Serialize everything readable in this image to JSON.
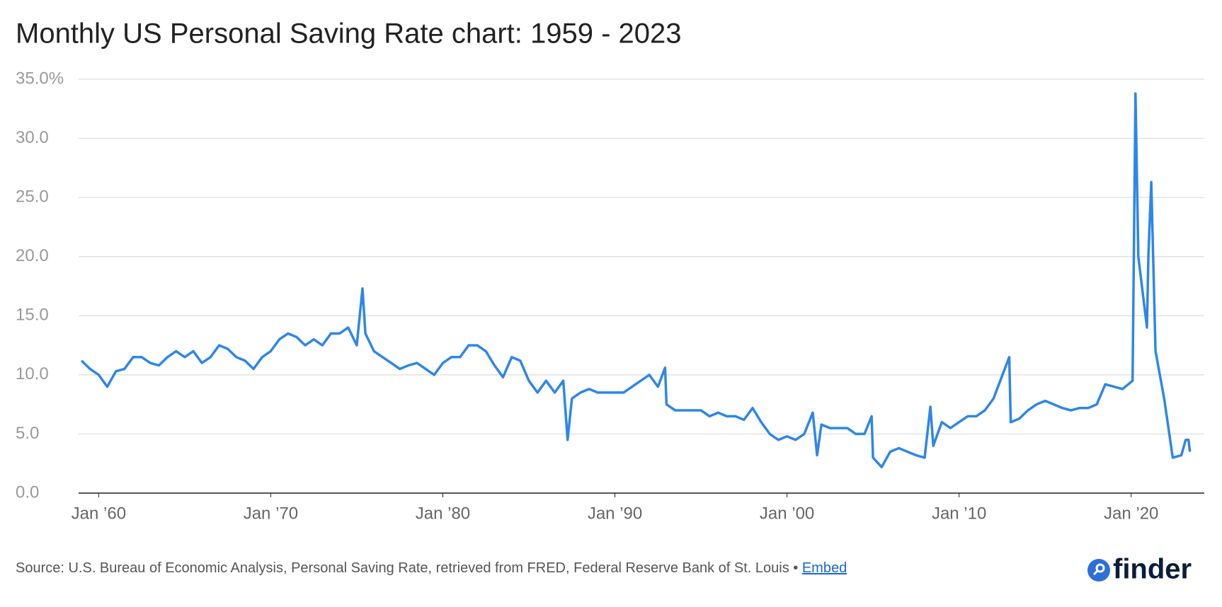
{
  "chart_data": {
    "type": "line",
    "title": "Monthly US Personal Saving Rate chart: 1959 - 2023",
    "source": "Source: U.S. Bureau of Economic Analysis, Personal Saving Rate, retrieved from FRED, Federal Reserve Bank of St. Louis • ",
    "embed_label": "Embed",
    "logo": "finder",
    "color": "#2e86ea",
    "grid": true,
    "xlim": [
      "1958-11",
      "2024-04"
    ],
    "xticks": [
      {
        "value": "1960-01",
        "label": "Jan ’60"
      },
      {
        "value": "1970-01",
        "label": "Jan ’70"
      },
      {
        "value": "1980-01",
        "label": "Jan ’80"
      },
      {
        "value": "1990-01",
        "label": "Jan ’90"
      },
      {
        "value": "2000-01",
        "label": "Jan ’00"
      },
      {
        "value": "2010-01",
        "label": "Jan ’10"
      },
      {
        "value": "2020-01",
        "label": "Jan ’20"
      }
    ],
    "ylim": [
      0,
      35
    ],
    "yticks": [
      {
        "value": 0,
        "label": "0.0"
      },
      {
        "value": 5,
        "label": "5.0"
      },
      {
        "value": 10,
        "label": "10.0"
      },
      {
        "value": 15,
        "label": "15.0"
      },
      {
        "value": 20,
        "label": "20.0"
      },
      {
        "value": 25,
        "label": "25.0"
      },
      {
        "value": 30,
        "label": "30.0"
      },
      {
        "value": 35,
        "label": "35.0%"
      }
    ],
    "x": [
      "1959-01",
      "1959-07",
      "1960-01",
      "1960-07",
      "1961-01",
      "1961-07",
      "1962-01",
      "1962-07",
      "1963-01",
      "1963-07",
      "1964-01",
      "1964-07",
      "1965-01",
      "1965-07",
      "1966-01",
      "1966-07",
      "1967-01",
      "1967-07",
      "1968-01",
      "1968-07",
      "1969-01",
      "1969-07",
      "1970-01",
      "1970-07",
      "1971-01",
      "1971-07",
      "1972-01",
      "1972-07",
      "1973-01",
      "1973-07",
      "1974-01",
      "1974-07",
      "1975-01",
      "1975-05",
      "1975-07",
      "1976-01",
      "1976-07",
      "1977-01",
      "1977-07",
      "1978-01",
      "1978-07",
      "1979-01",
      "1979-07",
      "1980-01",
      "1980-07",
      "1981-01",
      "1981-07",
      "1982-01",
      "1982-07",
      "1983-01",
      "1983-07",
      "1984-01",
      "1984-07",
      "1985-01",
      "1985-07",
      "1986-01",
      "1986-07",
      "1987-01",
      "1987-04",
      "1987-07",
      "1988-01",
      "1988-07",
      "1989-01",
      "1989-07",
      "1990-01",
      "1990-07",
      "1991-01",
      "1991-07",
      "1992-01",
      "1992-07",
      "1992-12",
      "1993-01",
      "1993-07",
      "1994-01",
      "1994-07",
      "1995-01",
      "1995-07",
      "1996-01",
      "1996-07",
      "1997-01",
      "1997-07",
      "1998-01",
      "1998-07",
      "1999-01",
      "1999-07",
      "2000-01",
      "2000-07",
      "2001-01",
      "2001-07",
      "2001-10",
      "2002-01",
      "2002-07",
      "2003-01",
      "2003-07",
      "2004-01",
      "2004-07",
      "2004-12",
      "2005-01",
      "2005-07",
      "2006-01",
      "2006-07",
      "2007-01",
      "2007-07",
      "2008-01",
      "2008-05",
      "2008-07",
      "2009-01",
      "2009-07",
      "2010-01",
      "2010-07",
      "2011-01",
      "2011-07",
      "2012-01",
      "2012-12",
      "2013-01",
      "2013-07",
      "2014-01",
      "2014-07",
      "2015-01",
      "2015-07",
      "2016-01",
      "2016-07",
      "2017-01",
      "2017-07",
      "2018-01",
      "2018-07",
      "2019-01",
      "2019-07",
      "2020-02",
      "2020-04",
      "2020-06",
      "2020-12",
      "2021-01",
      "2021-03",
      "2021-06",
      "2021-12",
      "2022-03",
      "2022-06",
      "2022-12",
      "2023-03",
      "2023-05",
      "2023-06"
    ],
    "values": [
      11.2,
      10.5,
      10.0,
      9.0,
      10.3,
      10.5,
      11.5,
      11.5,
      11.0,
      10.8,
      11.5,
      12.0,
      11.5,
      12.0,
      11.0,
      11.5,
      12.5,
      12.2,
      11.5,
      11.2,
      10.5,
      11.5,
      12.0,
      13.0,
      13.5,
      13.2,
      12.5,
      13.0,
      12.5,
      13.5,
      13.5,
      14.0,
      12.5,
      17.3,
      13.5,
      12.0,
      11.5,
      11.0,
      10.5,
      10.8,
      11.0,
      10.5,
      10.0,
      11.0,
      11.5,
      11.5,
      12.5,
      12.5,
      12.0,
      10.8,
      9.8,
      11.5,
      11.2,
      9.5,
      8.5,
      9.5,
      8.5,
      9.5,
      4.5,
      8.0,
      8.5,
      8.8,
      8.5,
      8.5,
      8.5,
      8.5,
      9.0,
      9.5,
      10.0,
      9.0,
      10.6,
      7.5,
      7.0,
      7.0,
      7.0,
      7.0,
      6.5,
      6.8,
      6.5,
      6.5,
      6.2,
      7.2,
      6.0,
      5.0,
      4.5,
      4.8,
      4.5,
      5.0,
      6.8,
      3.2,
      5.8,
      5.5,
      5.5,
      5.5,
      5.0,
      5.0,
      6.5,
      3.0,
      2.2,
      3.5,
      3.8,
      3.5,
      3.2,
      3.0,
      7.3,
      4.0,
      6.0,
      5.5,
      6.0,
      6.5,
      6.5,
      7.0,
      8.0,
      11.5,
      6.0,
      6.3,
      7.0,
      7.5,
      7.8,
      7.5,
      7.2,
      7.0,
      7.2,
      7.2,
      7.5,
      9.2,
      9.0,
      8.8,
      9.5,
      33.8,
      20.0,
      14.0,
      20.0,
      26.3,
      12.0,
      8.0,
      5.5,
      3.0,
      3.2,
      4.5,
      4.5,
      3.5
    ]
  }
}
